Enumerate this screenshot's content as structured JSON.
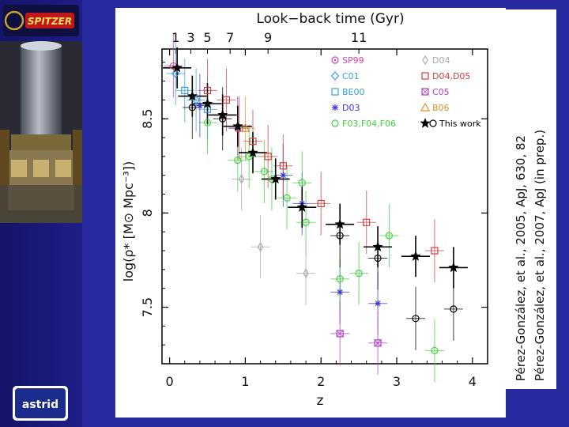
{
  "logo": {
    "text": "SPITZER"
  },
  "astrid": {
    "text": "astrid"
  },
  "citations": [
    "Pérez-González, et al., 2005, ApJ, 630, 82",
    "Pérez-González, et al., 2007, ApJ (in prep.)"
  ],
  "chart_data": {
    "type": "scatter",
    "title": "",
    "top_axis_label": "Look−back time (Gyr)",
    "top_ticks": [
      "1",
      "3",
      "5",
      "7",
      "9",
      "11"
    ],
    "top_tick_z": [
      0.08,
      0.28,
      0.5,
      0.8,
      1.3,
      2.5
    ],
    "xlabel": "z",
    "ylabel": "log(ρ* [M⊙ Mpc⁻³])",
    "xlim": [
      -0.1,
      4.2
    ],
    "ylim": [
      7.2,
      8.87
    ],
    "x_ticks": [
      "0",
      "1",
      "2",
      "3",
      "4"
    ],
    "y_ticks": [
      "7.5",
      "8",
      "8.5"
    ],
    "grid": false,
    "legend_position": "top-right",
    "series": [
      {
        "name": "SP99",
        "marker": "circle-dot",
        "color": "#e040a0",
        "points": [
          [
            0.05,
            8.78
          ]
        ]
      },
      {
        "name": "C01",
        "marker": "diamond",
        "color": "#3aa0e0",
        "points": [
          [
            0.08,
            8.74
          ],
          [
            0.35,
            8.6
          ]
        ]
      },
      {
        "name": "BE00",
        "marker": "square",
        "color": "#3aa0e0",
        "points": [
          [
            0.2,
            8.65
          ],
          [
            0.5,
            8.55
          ]
        ]
      },
      {
        "name": "D03",
        "marker": "star",
        "color": "#3a3ad8",
        "points": [
          [
            0.4,
            8.57
          ],
          [
            0.9,
            8.45
          ],
          [
            1.5,
            8.2
          ],
          [
            1.75,
            8.05
          ],
          [
            2.25,
            7.58
          ],
          [
            2.75,
            7.52
          ]
        ]
      },
      {
        "name": "F03,F04,F06",
        "marker": "circle",
        "color": "#40d040",
        "points": [
          [
            0.5,
            8.48
          ],
          [
            0.9,
            8.28
          ],
          [
            1.05,
            8.3
          ],
          [
            1.25,
            8.22
          ],
          [
            1.35,
            8.18
          ],
          [
            1.55,
            8.08
          ],
          [
            1.75,
            8.16
          ],
          [
            1.8,
            7.95
          ],
          [
            2.25,
            7.65
          ],
          [
            2.5,
            7.68
          ],
          [
            2.9,
            7.88
          ],
          [
            3.5,
            7.27
          ]
        ]
      },
      {
        "name": "D04",
        "marker": "thin-diamond",
        "color": "#a8a8a8",
        "points": [
          [
            0.95,
            8.18
          ],
          [
            1.2,
            7.82
          ],
          [
            1.8,
            7.68
          ]
        ]
      },
      {
        "name": "D04,D05",
        "marker": "square",
        "color": "#d04040",
        "points": [
          [
            0.5,
            8.65
          ],
          [
            0.75,
            8.6
          ],
          [
            0.92,
            8.45
          ],
          [
            1.1,
            8.38
          ],
          [
            1.3,
            8.3
          ],
          [
            1.5,
            8.25
          ],
          [
            2.0,
            8.05
          ],
          [
            2.6,
            7.95
          ],
          [
            3.5,
            7.8
          ]
        ]
      },
      {
        "name": "C05",
        "marker": "square-x",
        "color": "#b040c0",
        "points": [
          [
            2.25,
            7.36
          ],
          [
            2.75,
            7.31
          ]
        ]
      },
      {
        "name": "B06",
        "marker": "triangle",
        "color": "#e09030",
        "points": [
          [
            1.0,
            8.45
          ]
        ]
      },
      {
        "name": "This work",
        "marker": "filled-star",
        "color": "#000000",
        "points": [
          [
            0.1,
            8.77
          ],
          [
            0.3,
            8.62
          ],
          [
            0.5,
            8.58
          ],
          [
            0.7,
            8.52
          ],
          [
            0.9,
            8.46
          ],
          [
            1.1,
            8.32
          ],
          [
            1.4,
            8.18
          ],
          [
            1.75,
            8.03
          ],
          [
            2.25,
            7.94
          ],
          [
            2.75,
            7.82
          ],
          [
            3.25,
            7.77
          ],
          [
            3.75,
            7.71
          ]
        ]
      },
      {
        "name": "",
        "marker": "open-circle",
        "color": "#000000",
        "points": [
          [
            0.3,
            8.56
          ],
          [
            0.7,
            8.5
          ],
          [
            2.25,
            7.88
          ],
          [
            2.75,
            7.76
          ],
          [
            3.25,
            7.44
          ],
          [
            3.75,
            7.49
          ]
        ]
      }
    ]
  }
}
